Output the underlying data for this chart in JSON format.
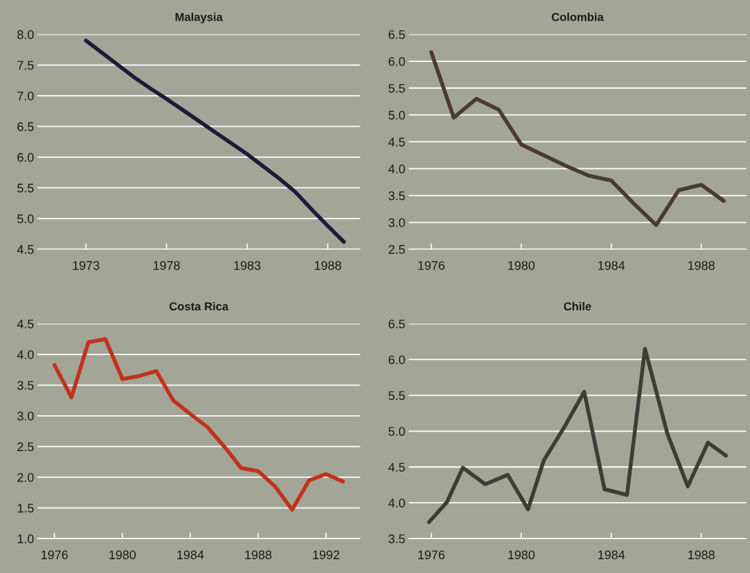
{
  "chart_data": [
    {
      "type": "line",
      "title": "Malaysia",
      "x": [
        1973,
        1974,
        1975,
        1976,
        1977,
        1978,
        1979,
        1980,
        1981,
        1982,
        1983,
        1984,
        1985,
        1986,
        1987,
        1988,
        1989
      ],
      "series": [
        {
          "color": "#1e1a3a",
          "values": [
            7.9,
            7.7,
            7.5,
            7.3,
            7.12,
            6.95,
            6.77,
            6.59,
            6.41,
            6.23,
            6.05,
            5.85,
            5.65,
            5.43,
            5.15,
            4.88,
            4.62
          ]
        }
      ],
      "xlim": [
        1970,
        1990
      ],
      "ylim": [
        4.5,
        8.0
      ],
      "xticks": [
        1973,
        1978,
        1983,
        1988
      ],
      "yticks": [
        {
          "value": 4.5,
          "label": "4.5"
        },
        {
          "value": 5,
          "label": "5.0"
        },
        {
          "value": 5.5,
          "label": "5.5"
        },
        {
          "value": 6,
          "label": "6.0"
        },
        {
          "value": 6.5,
          "label": "6.5"
        },
        {
          "value": 7,
          "label": "7.0"
        },
        {
          "value": 7.5,
          "label": "7.5"
        },
        {
          "value": 8,
          "label": "8.0"
        }
      ],
      "grid": "y"
    },
    {
      "type": "line",
      "title": "Colombia",
      "x": [
        1976,
        1977,
        1978,
        1979,
        1980,
        1981,
        1982,
        1983,
        1984,
        1985,
        1986,
        1987,
        1988,
        1989
      ],
      "series": [
        {
          "color": "#4a3b30",
          "values": [
            6.17,
            4.95,
            5.3,
            5.1,
            4.45,
            4.25,
            4.05,
            3.87,
            3.78,
            3.35,
            2.95,
            3.6,
            3.7,
            3.4
          ]
        }
      ],
      "xlim": [
        1975,
        1990
      ],
      "ylim": [
        2.5,
        6.5
      ],
      "xticks": [
        1976,
        1980,
        1984,
        1988
      ],
      "yticks": [
        {
          "value": 2.5,
          "label": "2.5"
        },
        {
          "value": 3,
          "label": "3.0"
        },
        {
          "value": 3.5,
          "label": "3.5"
        },
        {
          "value": 4,
          "label": "4.0"
        },
        {
          "value": 4.5,
          "label": "4.5"
        },
        {
          "value": 5,
          "label": "5.0"
        },
        {
          "value": 5.5,
          "label": "5.5"
        },
        {
          "value": 6,
          "label": "6.0"
        },
        {
          "value": 6.5,
          "label": "6.5"
        }
      ],
      "grid": "y"
    },
    {
      "type": "line",
      "title": "Costa Rica",
      "x": [
        1976,
        1977,
        1978,
        1979,
        1980,
        1981,
        1982,
        1983,
        1984,
        1985,
        1986,
        1987,
        1988,
        1989,
        1990,
        1991,
        1992,
        1993
      ],
      "series": [
        {
          "color": "#c2321c",
          "values": [
            3.83,
            3.3,
            4.2,
            4.25,
            3.6,
            3.65,
            3.73,
            3.25,
            3.03,
            2.82,
            2.5,
            2.15,
            2.1,
            1.85,
            1.47,
            1.95,
            2.05,
            1.93
          ]
        }
      ],
      "xlim": [
        1975,
        1994
      ],
      "ylim": [
        1.0,
        4.5
      ],
      "xticks": [
        1976,
        1980,
        1984,
        1988,
        1992
      ],
      "yticks": [
        {
          "value": 1,
          "label": "1.0"
        },
        {
          "value": 1.5,
          "label": "1.5"
        },
        {
          "value": 2,
          "label": "2.0"
        },
        {
          "value": 2.5,
          "label": "2.5"
        },
        {
          "value": 3,
          "label": "3.0"
        },
        {
          "value": 3.5,
          "label": "3.5"
        },
        {
          "value": 4,
          "label": "4.0"
        },
        {
          "value": 4.5,
          "label": "4.5"
        }
      ],
      "grid": "y"
    },
    {
      "type": "line",
      "title": "Chile",
      "x": [
        1975.9,
        1976.7,
        1977.4,
        1978.4,
        1979.4,
        1980.3,
        1981.0,
        1981.9,
        1982.8,
        1983.7,
        1984.7,
        1985.5,
        1986.5,
        1987.4,
        1988.3,
        1989.1
      ],
      "series": [
        {
          "color": "#3c3e36",
          "values": [
            3.73,
            4.01,
            4.49,
            4.26,
            4.39,
            3.91,
            4.59,
            5.05,
            5.55,
            4.19,
            4.11,
            6.15,
            4.96,
            4.23,
            4.84,
            4.66
          ]
        }
      ],
      "xlim": [
        1975,
        1990
      ],
      "ylim": [
        3.5,
        6.5
      ],
      "xticks": [
        1976,
        1980,
        1984,
        1988
      ],
      "yticks": [
        {
          "value": 3.5,
          "label": "3.5"
        },
        {
          "value": 4,
          "label": "4.0"
        },
        {
          "value": 4.5,
          "label": "4.5"
        },
        {
          "value": 5,
          "label": "5.0"
        },
        {
          "value": 5.5,
          "label": "5.5"
        },
        {
          "value": 6,
          "label": "6.0"
        },
        {
          "value": 6.5,
          "label": "6.5"
        }
      ],
      "grid": "y"
    }
  ]
}
